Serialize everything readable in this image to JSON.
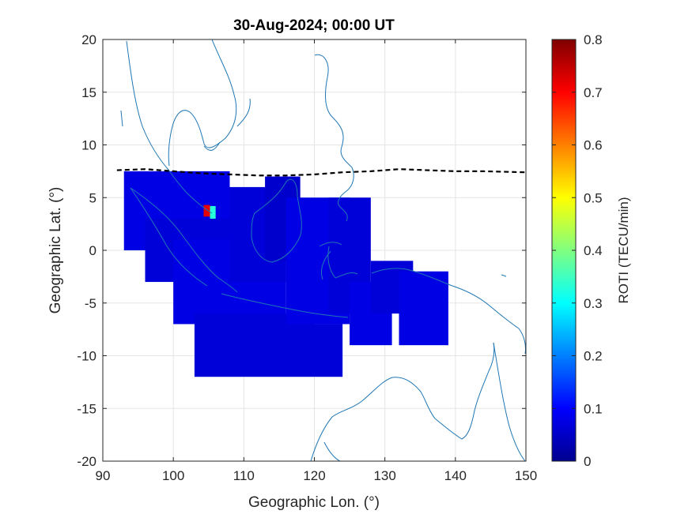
{
  "chart_data": {
    "type": "heatmap",
    "title": "30-Aug-2024; 00:00 UT",
    "xlabel": "Geographic Lon. (°)",
    "ylabel": "Geographic Lat. (°)",
    "xlim": [
      90,
      150
    ],
    "ylim": [
      -20,
      20
    ],
    "xticks": [
      "90",
      "100",
      "110",
      "120",
      "130",
      "140",
      "150"
    ],
    "yticks": [
      "20",
      "15",
      "10",
      "5",
      "0",
      "-5",
      "-10",
      "-15",
      "-20"
    ],
    "grid": true,
    "colorbar": {
      "label": "ROTI (TECU/min)",
      "range": [
        0,
        0.8
      ],
      "ticks": [
        "0",
        "0.1",
        "0.2",
        "0.3",
        "0.4",
        "0.5",
        "0.6",
        "0.7",
        "0.8"
      ],
      "colormap": "jet"
    },
    "overlays": {
      "coastline_color": "#1f77b4",
      "dip_equator_style": "dashed black",
      "dip_equator": [
        [
          92,
          7.6
        ],
        [
          96,
          7.7
        ],
        [
          100,
          7.5
        ],
        [
          104,
          7.3
        ],
        [
          108,
          7.2
        ],
        [
          112,
          7.1
        ],
        [
          116,
          7.1
        ],
        [
          120,
          7.2
        ],
        [
          124,
          7.4
        ],
        [
          128,
          7.5
        ],
        [
          132,
          7.7
        ],
        [
          136,
          7.6
        ],
        [
          140,
          7.5
        ],
        [
          144,
          7.5
        ],
        [
          150,
          7.4
        ]
      ]
    },
    "cells": [
      {
        "lon_min": 93,
        "lon_max": 108,
        "lat_min": 0,
        "lat_max": 7.5,
        "roti": 0.08
      },
      {
        "lon_min": 96,
        "lon_max": 110,
        "lat_min": -3,
        "lat_max": 3,
        "roti": 0.07
      },
      {
        "lon_min": 100,
        "lon_max": 116,
        "lat_min": -7,
        "lat_max": 1,
        "roti": 0.08
      },
      {
        "lon_min": 103,
        "lon_max": 120,
        "lat_min": -12,
        "lat_max": -6,
        "roti": 0.07
      },
      {
        "lon_min": 108,
        "lon_max": 116,
        "lat_min": -3,
        "lat_max": 6,
        "roti": 0.07
      },
      {
        "lon_min": 113,
        "lon_max": 118,
        "lat_min": -1,
        "lat_max": 7,
        "roti": 0.06
      },
      {
        "lon_min": 116,
        "lon_max": 125,
        "lat_min": -7,
        "lat_max": 5,
        "roti": 0.08
      },
      {
        "lon_min": 120,
        "lon_max": 124,
        "lat_min": -12,
        "lat_max": -7,
        "roti": 0.07
      },
      {
        "lon_min": 122,
        "lon_max": 128,
        "lat_min": -6,
        "lat_max": 5,
        "roti": 0.07
      },
      {
        "lon_min": 125,
        "lon_max": 131,
        "lat_min": -9,
        "lat_max": -3,
        "roti": 0.08
      },
      {
        "lon_min": 128,
        "lon_max": 134,
        "lat_min": -6,
        "lat_max": -1,
        "roti": 0.07
      },
      {
        "lon_min": 132,
        "lon_max": 139,
        "lat_min": -9,
        "lat_max": -2,
        "roti": 0.08
      },
      {
        "lon_min": 104.3,
        "lon_max": 105.2,
        "lat_min": 3.2,
        "lat_max": 4.3,
        "roti": 0.72
      },
      {
        "lon_min": 105.2,
        "lon_max": 106,
        "lat_min": 3,
        "lat_max": 4.2,
        "roti": 0.33
      }
    ]
  }
}
